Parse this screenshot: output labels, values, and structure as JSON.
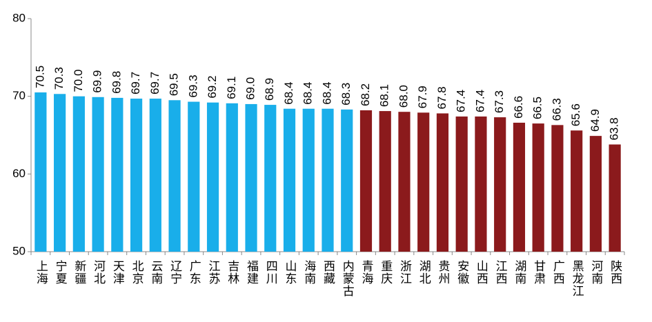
{
  "chart_data": {
    "type": "bar",
    "categories": [
      "上海",
      "宁夏",
      "新疆",
      "河北",
      "天津",
      "北京",
      "云南",
      "辽宁",
      "广东",
      "江苏",
      "吉林",
      "福建",
      "四川",
      "山东",
      "海南",
      "西藏",
      "内蒙古",
      "青海",
      "重庆",
      "浙江",
      "湖北",
      "贵州",
      "安徽",
      "山西",
      "江西",
      "湖南",
      "甘肃",
      "广西",
      "黑龙江",
      "河南",
      "陕西"
    ],
    "values": [
      70.5,
      70.3,
      70.0,
      69.9,
      69.8,
      69.7,
      69.7,
      69.5,
      69.3,
      69.2,
      69.1,
      69.0,
      68.9,
      68.4,
      68.4,
      68.4,
      68.3,
      68.2,
      68.1,
      68.0,
      67.9,
      67.8,
      67.4,
      67.4,
      67.3,
      66.6,
      66.5,
      66.3,
      65.6,
      64.9,
      63.8
    ],
    "value_labels": [
      "70.5",
      "70.3",
      "70.0",
      "69.9",
      "69.8",
      "69.7",
      "69.7",
      "69.5",
      "69.3",
      "69.2",
      "69.1",
      "69.0",
      "68.9",
      "68.4",
      "68.4",
      "68.4",
      "68.3",
      "68.2",
      "68.1",
      "68.0",
      "67.9",
      "67.8",
      "67.4",
      "67.4",
      "67.3",
      "66.6",
      "66.5",
      "66.3",
      "65.6",
      "64.9",
      "63.8"
    ],
    "colors": [
      "#19aeea",
      "#19aeea",
      "#19aeea",
      "#19aeea",
      "#19aeea",
      "#19aeea",
      "#19aeea",
      "#19aeea",
      "#19aeea",
      "#19aeea",
      "#19aeea",
      "#19aeea",
      "#19aeea",
      "#19aeea",
      "#19aeea",
      "#19aeea",
      "#19aeea",
      "#8b1a1c",
      "#8b1a1c",
      "#8b1a1c",
      "#8b1a1c",
      "#8b1a1c",
      "#8b1a1c",
      "#8b1a1c",
      "#8b1a1c",
      "#8b1a1c",
      "#8b1a1c",
      "#8b1a1c",
      "#8b1a1c",
      "#8b1a1c",
      "#8b1a1c"
    ],
    "ylim": [
      50,
      80
    ],
    "yticks": [
      50,
      60,
      70,
      80
    ],
    "grid": false
  }
}
